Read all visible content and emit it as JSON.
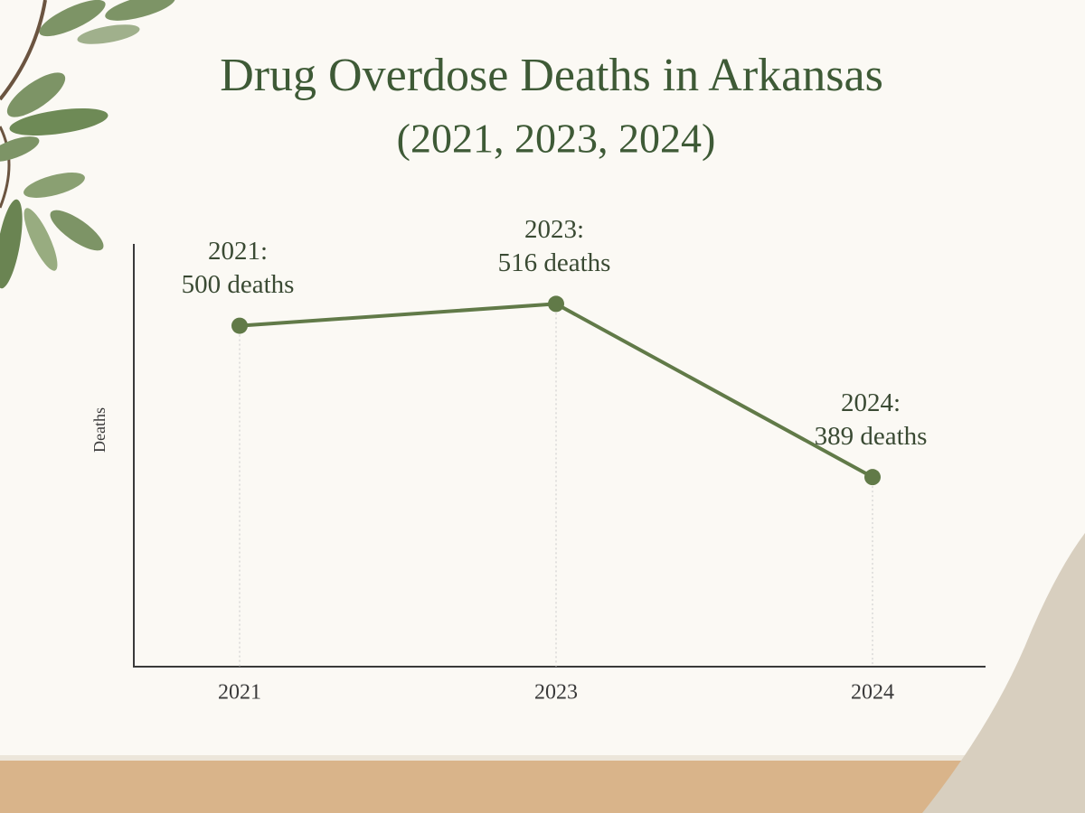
{
  "chart_data": {
    "type": "line",
    "title": "Drug Overdose Deaths in Arkansas",
    "subtitle": "(2021, 2023, 2024)",
    "y_label": "Deaths",
    "categories": [
      "2021",
      "2023",
      "2024"
    ],
    "values": [
      500,
      516,
      389
    ],
    "annotations": [
      "2021:",
      "2023:",
      "2024:"
    ],
    "value_labels": [
      "500 deaths",
      "516 deaths",
      "389 deaths"
    ],
    "color": "#617a48",
    "ylim": [
      250,
      560
    ],
    "drop_lines": true
  }
}
